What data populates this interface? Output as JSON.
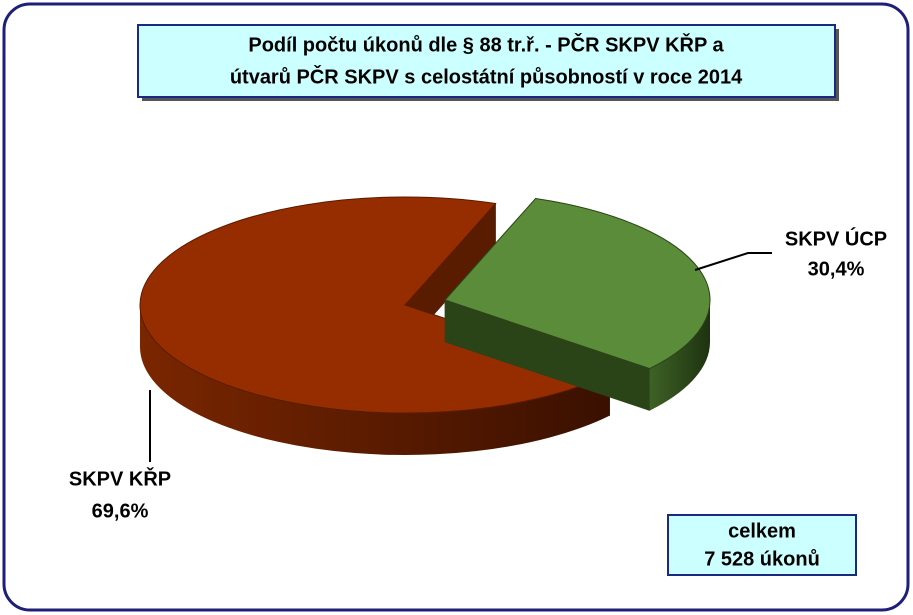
{
  "chart_data": {
    "type": "pie",
    "title": [
      "Podíl počtu úkonů dle  § 88 tr.ř. - PČR SKPV KŘP a",
      "útvarů PČR SKPV s celostátní působností v roce 2014"
    ],
    "categories": [
      "SKPV ÚCP",
      "SKPV KŘP"
    ],
    "values": [
      30.4,
      69.6
    ],
    "value_labels": [
      "30,4%",
      "69,6%"
    ],
    "colors": [
      "#5b8c3a",
      "#962d00"
    ],
    "annotation": [
      "celkem",
      "7 528 úkonů"
    ]
  }
}
